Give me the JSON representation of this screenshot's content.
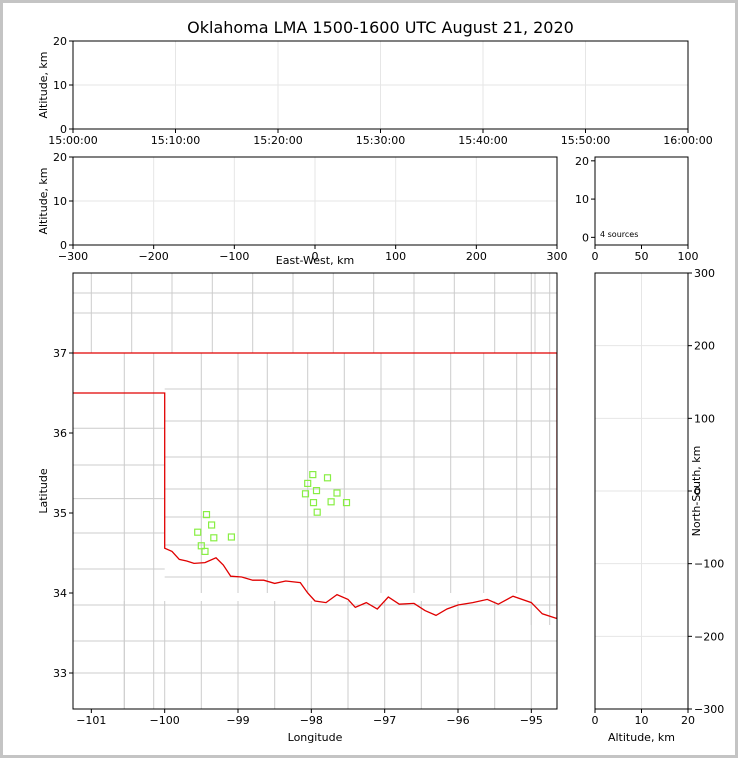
{
  "figure": {
    "title": "Oklahoma LMA 1500-1600 UTC August 21, 2020",
    "source_count_label": "4 sources"
  },
  "colors": {
    "state_border": "#e00000",
    "county_lines": "#cccccc",
    "grid": "#e6e6e6",
    "sources": "#88ee44"
  },
  "chart_data": [
    {
      "panel": "time-altitude",
      "type": "scatter",
      "ylabel": "Altitude, km",
      "ylim": [
        0,
        20
      ],
      "yticks": [
        "0",
        "10",
        "20"
      ],
      "xticks": [
        "15:00:00",
        "15:10:00",
        "15:20:00",
        "15:30:00",
        "15:40:00",
        "15:50:00",
        "16:00:00"
      ],
      "points": []
    },
    {
      "panel": "east-west-altitude",
      "type": "scatter",
      "xlabel": "East-West, km",
      "ylabel": "Altitude, km",
      "xlim": [
        -300,
        300
      ],
      "ylim": [
        0,
        20
      ],
      "xticks": [
        "−300",
        "−200",
        "−100",
        "0",
        "100",
        "200",
        "300"
      ],
      "yticks": [
        "0",
        "10",
        "20"
      ],
      "points": []
    },
    {
      "panel": "altitude-histogram",
      "type": "bar",
      "xlim": [
        0,
        100
      ],
      "ylim": [
        0,
        20
      ],
      "xticks": [
        "0",
        "50",
        "100"
      ],
      "yticks": [
        "0",
        "10",
        "20"
      ],
      "values": []
    },
    {
      "panel": "plan-view",
      "type": "scatter",
      "xlabel": "Longitude",
      "ylabel": "Latitude",
      "xlim": [
        -101.25,
        -94.65
      ],
      "ylim": [
        32.55,
        38.0
      ],
      "xticks": [
        "−101",
        "−100",
        "−99",
        "−98",
        "−97",
        "−96",
        "−95"
      ],
      "yticks": [
        "33",
        "34",
        "35",
        "36",
        "37"
      ],
      "points": [
        {
          "lon": -97.98,
          "lat": 35.48
        },
        {
          "lon": -98.05,
          "lat": 35.37
        },
        {
          "lon": -97.78,
          "lat": 35.44
        },
        {
          "lon": -97.93,
          "lat": 35.28
        },
        {
          "lon": -98.08,
          "lat": 35.24
        },
        {
          "lon": -97.65,
          "lat": 35.25
        },
        {
          "lon": -97.97,
          "lat": 35.13
        },
        {
          "lon": -97.73,
          "lat": 35.14
        },
        {
          "lon": -97.52,
          "lat": 35.13
        },
        {
          "lon": -97.92,
          "lat": 35.01
        },
        {
          "lon": -99.43,
          "lat": 34.98
        },
        {
          "lon": -99.36,
          "lat": 34.85
        },
        {
          "lon": -99.55,
          "lat": 34.76
        },
        {
          "lon": -99.33,
          "lat": 34.69
        },
        {
          "lon": -99.09,
          "lat": 34.7
        },
        {
          "lon": -99.5,
          "lat": 34.59
        },
        {
          "lon": -99.45,
          "lat": 34.52
        }
      ]
    },
    {
      "panel": "altitude-north-south",
      "type": "scatter",
      "xlabel": "Altitude, km",
      "ylabel": "North-South, km",
      "xlim": [
        0,
        20
      ],
      "ylim": [
        -300,
        300
      ],
      "xticks": [
        "0",
        "10",
        "20"
      ],
      "yticks": [
        "−300",
        "−200",
        "−100",
        "0",
        "100",
        "200",
        "300"
      ],
      "points": []
    }
  ]
}
